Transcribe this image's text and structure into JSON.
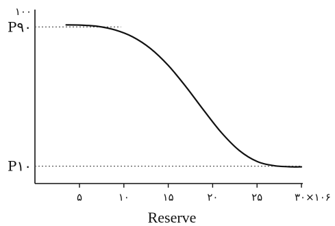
{
  "chart_data": {
    "type": "line",
    "title": "",
    "xlabel": "Reserve",
    "ylabel": "",
    "xlim": [
      0,
      30
    ],
    "ylim": [
      0,
      100
    ],
    "x_ticks": [
      5,
      10,
      15,
      20,
      25,
      30
    ],
    "x_tick_labels": [
      "۵",
      "۱۰",
      "۱۵",
      "۲۰",
      "۲۵",
      "۳۰×۱۰۶"
    ],
    "y_top_label": "۱۰۰",
    "markers": [
      {
        "label": "P۹۰",
        "value": 90
      },
      {
        "label": "P۱۰",
        "value": 10
      }
    ],
    "series": [
      {
        "x": [
          3.5,
          5,
          7,
          9,
          11,
          13,
          15,
          17,
          19,
          21,
          23,
          25,
          27,
          29,
          30
        ],
        "y": [
          91.2,
          91.1,
          90.4,
          88.3,
          84.3,
          77.6,
          67.9,
          55.6,
          42.1,
          29.2,
          19.0,
          12.7,
          10.2,
          9.6,
          9.6
        ]
      }
    ]
  }
}
